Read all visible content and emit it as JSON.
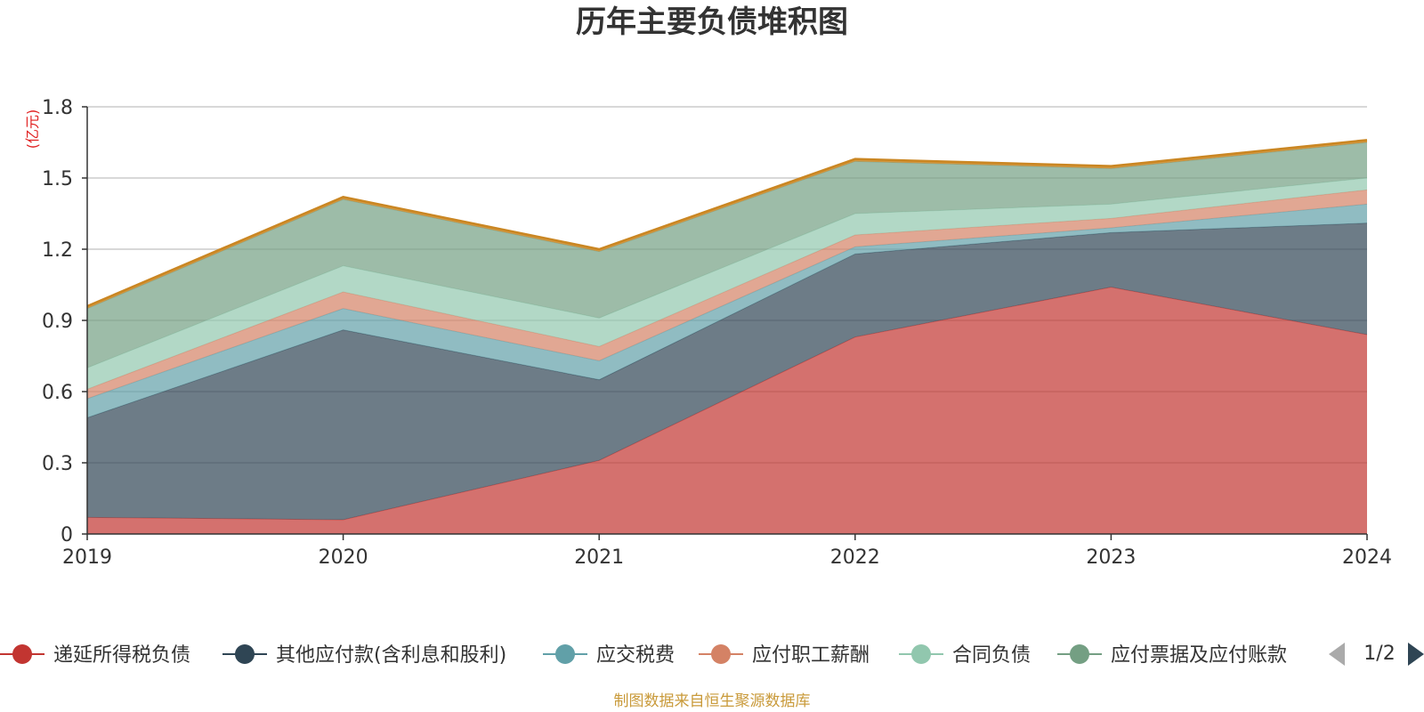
{
  "chart_data": {
    "type": "area",
    "stacked": true,
    "title": "历年主要负债堆积图",
    "unit_label": "(亿元)",
    "categories": [
      "2019",
      "2020",
      "2021",
      "2022",
      "2023",
      "2024"
    ],
    "ylim": [
      0,
      1.8
    ],
    "yticks": [
      "0",
      "0.3",
      "0.6",
      "0.9",
      "1.2",
      "1.5",
      "1.8"
    ],
    "grid": true,
    "legend_position": "bottom",
    "series": [
      {
        "name": "递延所得税负债",
        "color": "#c23531",
        "values": [
          0.07,
          0.06,
          0.31,
          0.83,
          1.04,
          0.84
        ]
      },
      {
        "name": "其他应付款(含利息和股利)",
        "color": "#2f4554",
        "values": [
          0.42,
          0.8,
          0.34,
          0.35,
          0.23,
          0.47
        ]
      },
      {
        "name": "应交税费",
        "color": "#61a0a8",
        "values": [
          0.08,
          0.09,
          0.08,
          0.03,
          0.02,
          0.08
        ]
      },
      {
        "name": "应付职工薪酬",
        "color": "#d48265",
        "values": [
          0.04,
          0.07,
          0.06,
          0.05,
          0.04,
          0.06
        ]
      },
      {
        "name": "合同负债",
        "color": "#91c7ae",
        "values": [
          0.09,
          0.11,
          0.12,
          0.09,
          0.06,
          0.05
        ]
      },
      {
        "name": "应付票据及应付账款",
        "color": "#749f83",
        "values": [
          0.25,
          0.28,
          0.28,
          0.22,
          0.15,
          0.15
        ]
      },
      {
        "name": "",
        "color": "#ca8622",
        "values": [
          0.01,
          0.01,
          0.01,
          0.01,
          0.01,
          0.01
        ]
      }
    ]
  },
  "legend": {
    "items": [
      "递延所得税负债",
      "其他应付款(含利息和股利)",
      "应交税费",
      "应付职工薪酬",
      "合同负债",
      "应付票据及应付账款"
    ],
    "page_label": "1/2"
  },
  "footer": "制图数据来自恒生聚源数据库"
}
